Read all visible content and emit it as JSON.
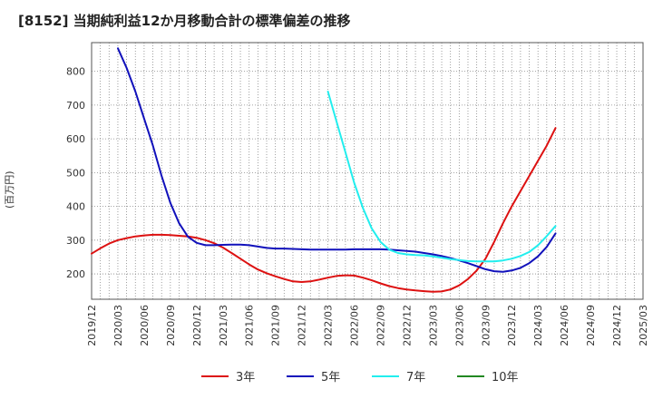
{
  "chart_data": {
    "type": "line",
    "title": "[8152]  当期純利益12か月移動合計の標準偏差の推移",
    "ylabel": "(百万円)",
    "xlabel": "",
    "ylim": [
      125,
      885
    ],
    "yticks": [
      200,
      300,
      400,
      500,
      600,
      700,
      800
    ],
    "xticks": [
      "2019/12",
      "2020/03",
      "2020/06",
      "2020/09",
      "2020/12",
      "2021/03",
      "2021/06",
      "2021/09",
      "2021/12",
      "2022/03",
      "2022/06",
      "2022/09",
      "2022/12",
      "2023/03",
      "2023/06",
      "2023/09",
      "2023/12",
      "2024/03",
      "2024/06",
      "2024/09",
      "2024/12",
      "2025/03"
    ],
    "grid": true,
    "series": [
      {
        "name": "3年",
        "color": "#dd1111",
        "points": [
          [
            0,
            260
          ],
          [
            1,
            276
          ],
          [
            2,
            290
          ],
          [
            3,
            300
          ],
          [
            4,
            306
          ],
          [
            5,
            311
          ],
          [
            6,
            314
          ],
          [
            7,
            316
          ],
          [
            8,
            316
          ],
          [
            9,
            315
          ],
          [
            10,
            313
          ],
          [
            11,
            311
          ],
          [
            12,
            307
          ],
          [
            13,
            300
          ],
          [
            14,
            291
          ],
          [
            15,
            278
          ],
          [
            16,
            262
          ],
          [
            17,
            245
          ],
          [
            18,
            228
          ],
          [
            19,
            213
          ],
          [
            20,
            202
          ],
          [
            21,
            193
          ],
          [
            22,
            185
          ],
          [
            23,
            178
          ],
          [
            24,
            176
          ],
          [
            25,
            178
          ],
          [
            26,
            183
          ],
          [
            27,
            189
          ],
          [
            28,
            194
          ],
          [
            29,
            196
          ],
          [
            30,
            195
          ],
          [
            31,
            189
          ],
          [
            32,
            181
          ],
          [
            33,
            172
          ],
          [
            34,
            164
          ],
          [
            35,
            158
          ],
          [
            36,
            154
          ],
          [
            37,
            151
          ],
          [
            38,
            149
          ],
          [
            39,
            147
          ],
          [
            40,
            148
          ],
          [
            41,
            154
          ],
          [
            42,
            166
          ],
          [
            43,
            185
          ],
          [
            44,
            210
          ],
          [
            45,
            245
          ],
          [
            46,
            295
          ],
          [
            47,
            350
          ],
          [
            48,
            400
          ],
          [
            49,
            445
          ],
          [
            50,
            490
          ],
          [
            51,
            535
          ],
          [
            52,
            580
          ],
          [
            53,
            632
          ]
        ]
      },
      {
        "name": "5年",
        "color": "#1111bb",
        "points": [
          [
            3,
            868
          ],
          [
            4,
            810
          ],
          [
            5,
            740
          ],
          [
            6,
            660
          ],
          [
            7,
            580
          ],
          [
            8,
            490
          ],
          [
            9,
            410
          ],
          [
            10,
            350
          ],
          [
            11,
            310
          ],
          [
            12,
            292
          ],
          [
            13,
            285
          ],
          [
            14,
            285
          ],
          [
            15,
            286
          ],
          [
            16,
            287
          ],
          [
            17,
            287
          ],
          [
            18,
            285
          ],
          [
            19,
            281
          ],
          [
            20,
            277
          ],
          [
            21,
            275
          ],
          [
            22,
            275
          ],
          [
            23,
            274
          ],
          [
            24,
            273
          ],
          [
            25,
            272
          ],
          [
            26,
            272
          ],
          [
            27,
            272
          ],
          [
            28,
            272
          ],
          [
            29,
            272
          ],
          [
            30,
            273
          ],
          [
            31,
            273
          ],
          [
            32,
            273
          ],
          [
            33,
            273
          ],
          [
            34,
            272
          ],
          [
            35,
            270
          ],
          [
            36,
            268
          ],
          [
            37,
            266
          ],
          [
            38,
            262
          ],
          [
            39,
            258
          ],
          [
            40,
            253
          ],
          [
            41,
            247
          ],
          [
            42,
            240
          ],
          [
            43,
            232
          ],
          [
            44,
            223
          ],
          [
            45,
            214
          ],
          [
            46,
            208
          ],
          [
            47,
            206
          ],
          [
            48,
            210
          ],
          [
            49,
            218
          ],
          [
            50,
            232
          ],
          [
            51,
            252
          ],
          [
            52,
            280
          ],
          [
            53,
            320
          ]
        ]
      },
      {
        "name": "7年",
        "color": "#22eeee",
        "points": [
          [
            27,
            740
          ],
          [
            28,
            650
          ],
          [
            29,
            560
          ],
          [
            30,
            470
          ],
          [
            31,
            395
          ],
          [
            32,
            335
          ],
          [
            33,
            295
          ],
          [
            34,
            272
          ],
          [
            35,
            262
          ],
          [
            36,
            258
          ],
          [
            37,
            256
          ],
          [
            38,
            255
          ],
          [
            39,
            252
          ],
          [
            40,
            248
          ],
          [
            41,
            244
          ],
          [
            42,
            241
          ],
          [
            43,
            238
          ],
          [
            44,
            237
          ],
          [
            45,
            237
          ],
          [
            46,
            237
          ],
          [
            47,
            240
          ],
          [
            48,
            245
          ],
          [
            49,
            253
          ],
          [
            50,
            265
          ],
          [
            51,
            285
          ],
          [
            52,
            312
          ],
          [
            53,
            342
          ]
        ]
      },
      {
        "name": "10年",
        "color": "#228822",
        "points": []
      }
    ]
  }
}
